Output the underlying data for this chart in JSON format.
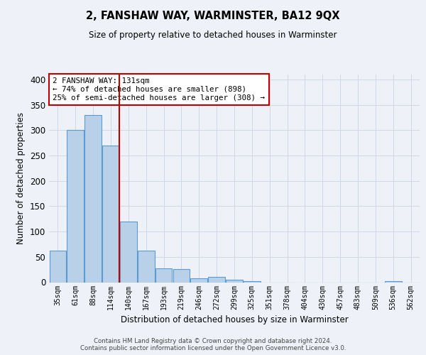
{
  "title_line1": "2, FANSHAW WAY, WARMINSTER, BA12 9QX",
  "title_line2": "Size of property relative to detached houses in Warminster",
  "xlabel": "Distribution of detached houses by size in Warminster",
  "ylabel": "Number of detached properties",
  "categories": [
    "35sqm",
    "61sqm",
    "88sqm",
    "114sqm",
    "140sqm",
    "167sqm",
    "193sqm",
    "219sqm",
    "246sqm",
    "272sqm",
    "299sqm",
    "325sqm",
    "351sqm",
    "378sqm",
    "404sqm",
    "430sqm",
    "457sqm",
    "483sqm",
    "509sqm",
    "536sqm",
    "562sqm"
  ],
  "values": [
    62,
    300,
    330,
    270,
    120,
    63,
    28,
    26,
    8,
    11,
    5,
    2,
    0,
    0,
    0,
    0,
    0,
    0,
    0,
    2,
    0
  ],
  "bar_color": "#b8d0e8",
  "bar_edge_color": "#5b9bd5",
  "grid_color": "#d0d8e8",
  "vline_color": "#c00000",
  "annotation_text": "2 FANSHAW WAY: 131sqm\n← 74% of detached houses are smaller (898)\n25% of semi-detached houses are larger (308) →",
  "annotation_box_color": "#ffffff",
  "annotation_box_edge": "#c00000",
  "ylim": [
    0,
    410
  ],
  "yticks": [
    0,
    50,
    100,
    150,
    200,
    250,
    300,
    350,
    400
  ],
  "footer": "Contains HM Land Registry data © Crown copyright and database right 2024.\nContains public sector information licensed under the Open Government Licence v3.0.",
  "bg_color": "#eef2f8"
}
